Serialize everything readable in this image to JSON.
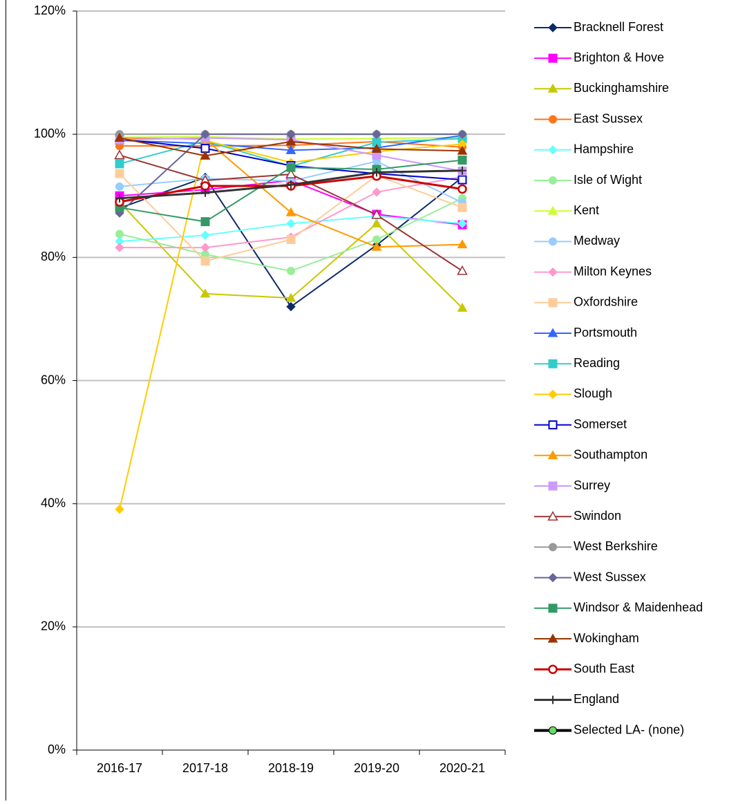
{
  "chart_data": {
    "type": "line",
    "categories": [
      "2016-17",
      "2017-18",
      "2018-19",
      "2019-20",
      "2020-21"
    ],
    "ylim": [
      0,
      120
    ],
    "yticks": [
      {
        "value": 0,
        "label": "0%"
      },
      {
        "value": 20,
        "label": "20%"
      },
      {
        "value": 40,
        "label": "40%"
      },
      {
        "value": 60,
        "label": "60%"
      },
      {
        "value": 80,
        "label": "80%"
      },
      {
        "value": 100,
        "label": "100%"
      },
      {
        "value": 120,
        "label": "120%"
      }
    ],
    "grid": true,
    "legend": "right",
    "series": [
      {
        "name": "Bracknell Forest",
        "color": "#0d2a6b",
        "marker": "diamond",
        "marker_fill": "#0d2a6b",
        "values": [
          88,
          93,
          72,
          82,
          93
        ]
      },
      {
        "name": "Brighton & Hove",
        "color": "#ff00ff",
        "marker": "square",
        "marker_fill": "#ff00ff",
        "values": [
          90,
          91,
          92.5,
          87,
          85.3
        ]
      },
      {
        "name": "Buckinghamshire",
        "color": "#c8c800",
        "marker": "triangle",
        "marker_fill": "#c8c800",
        "values": [
          89,
          74.1,
          73.4,
          85.5,
          71.8
        ]
      },
      {
        "name": "East Sussex",
        "color": "#ff7518",
        "marker": "circle",
        "marker_fill": "#ff7518",
        "values": [
          98.1,
          98.1,
          98.2,
          98.8,
          97.9
        ]
      },
      {
        "name": "Hampshire",
        "color": "#66ffff",
        "marker": "diamond",
        "marker_fill": "#66ffff",
        "values": [
          82.6,
          83.6,
          85.5,
          86.7,
          85.5
        ]
      },
      {
        "name": "Isle of Wight",
        "color": "#99ee99",
        "marker": "circle",
        "marker_fill": "#99ee99",
        "values": [
          83.8,
          80.5,
          77.8,
          82.9,
          89.6
        ]
      },
      {
        "name": "Kent",
        "color": "#ccff33",
        "marker": "triangle",
        "marker_fill": "#ccff33",
        "values": [
          99.5,
          99.6,
          99.2,
          99.3,
          99.5
        ]
      },
      {
        "name": "Medway",
        "color": "#99ccff",
        "marker": "circle",
        "marker_fill": "#99ccff",
        "values": [
          91.5,
          92.8,
          92.4,
          95.6,
          88.9
        ]
      },
      {
        "name": "Milton Keynes",
        "color": "#ff99cc",
        "marker": "diamond",
        "marker_fill": "#ff99cc",
        "values": [
          81.6,
          81.6,
          83.3,
          90.6,
          93.1
        ]
      },
      {
        "name": "Oxfordshire",
        "color": "#ffcc99",
        "marker": "square",
        "marker_fill": "#ffcc99",
        "values": [
          93.6,
          79.4,
          82.9,
          93.3,
          88.1
        ]
      },
      {
        "name": "Portsmouth",
        "color": "#3366ff",
        "marker": "triangle",
        "marker_fill": "#3366ff",
        "values": [
          99.0,
          98.5,
          97.4,
          97.8,
          99.8
        ]
      },
      {
        "name": "Reading",
        "color": "#33cccc",
        "marker": "square",
        "marker_fill": "#33cccc",
        "values": [
          95.2,
          98.9,
          94.8,
          98.7,
          99.3
        ]
      },
      {
        "name": "Slough",
        "color": "#ffcc00",
        "marker": "diamond",
        "marker_fill": "#ffcc00",
        "values": [
          39.1,
          99.0,
          95.4,
          97.2,
          98.4
        ]
      },
      {
        "name": "Somerset",
        "color": "#0000cc",
        "marker": "square",
        "marker_fill": "#ffffff",
        "values": [
          99.2,
          97.7,
          94.9,
          93.6,
          92.6
        ]
      },
      {
        "name": "Southampton",
        "color": "#ff9900",
        "marker": "triangle",
        "marker_fill": "#ff9900",
        "values": [
          99.4,
          99.2,
          87.3,
          81.7,
          82.1
        ]
      },
      {
        "name": "Surrey",
        "color": "#cc99ff",
        "marker": "square",
        "marker_fill": "#cc99ff",
        "values": [
          99.1,
          99.4,
          99.1,
          96.6,
          94.0
        ]
      },
      {
        "name": "Swindon",
        "color": "#993333",
        "marker": "triangle",
        "marker_fill": "#ffffff",
        "values": [
          96.6,
          92.5,
          93.5,
          86.9,
          77.8
        ]
      },
      {
        "name": "West Berkshire",
        "color": "#999999",
        "marker": "circle",
        "marker_fill": "#999999",
        "values": [
          100,
          100,
          100,
          100,
          100
        ]
      },
      {
        "name": "West Sussex",
        "color": "#666699",
        "marker": "diamond",
        "marker_fill": "#666699",
        "values": [
          87.2,
          100,
          100,
          100,
          100
        ]
      },
      {
        "name": "Windsor & Maidenhead",
        "color": "#339966",
        "marker": "square",
        "marker_fill": "#339966",
        "values": [
          88.1,
          85.8,
          94.6,
          94.3,
          95.8
        ]
      },
      {
        "name": "Wokingham",
        "color": "#993300",
        "marker": "triangle",
        "marker_fill": "#993300",
        "values": [
          99.4,
          96.5,
          98.8,
          97.6,
          97.3
        ]
      },
      {
        "name": "South East",
        "color": "#cc0000",
        "marker": "circle",
        "marker_fill": "#ffffff",
        "width": 3,
        "values": [
          89.0,
          91.6,
          91.6,
          93.2,
          91.1
        ]
      },
      {
        "name": "England",
        "color": "#333333",
        "marker": "plus",
        "marker_fill": "#333333",
        "width": 3,
        "values": [
          89.6,
          90.5,
          91.8,
          93.8,
          94.1
        ]
      },
      {
        "name": "Selected LA- (none)",
        "color": "#000000",
        "marker": "circle",
        "marker_fill": "#66dd66",
        "width": 4,
        "values": [
          null,
          null,
          null,
          null,
          null
        ]
      }
    ]
  }
}
